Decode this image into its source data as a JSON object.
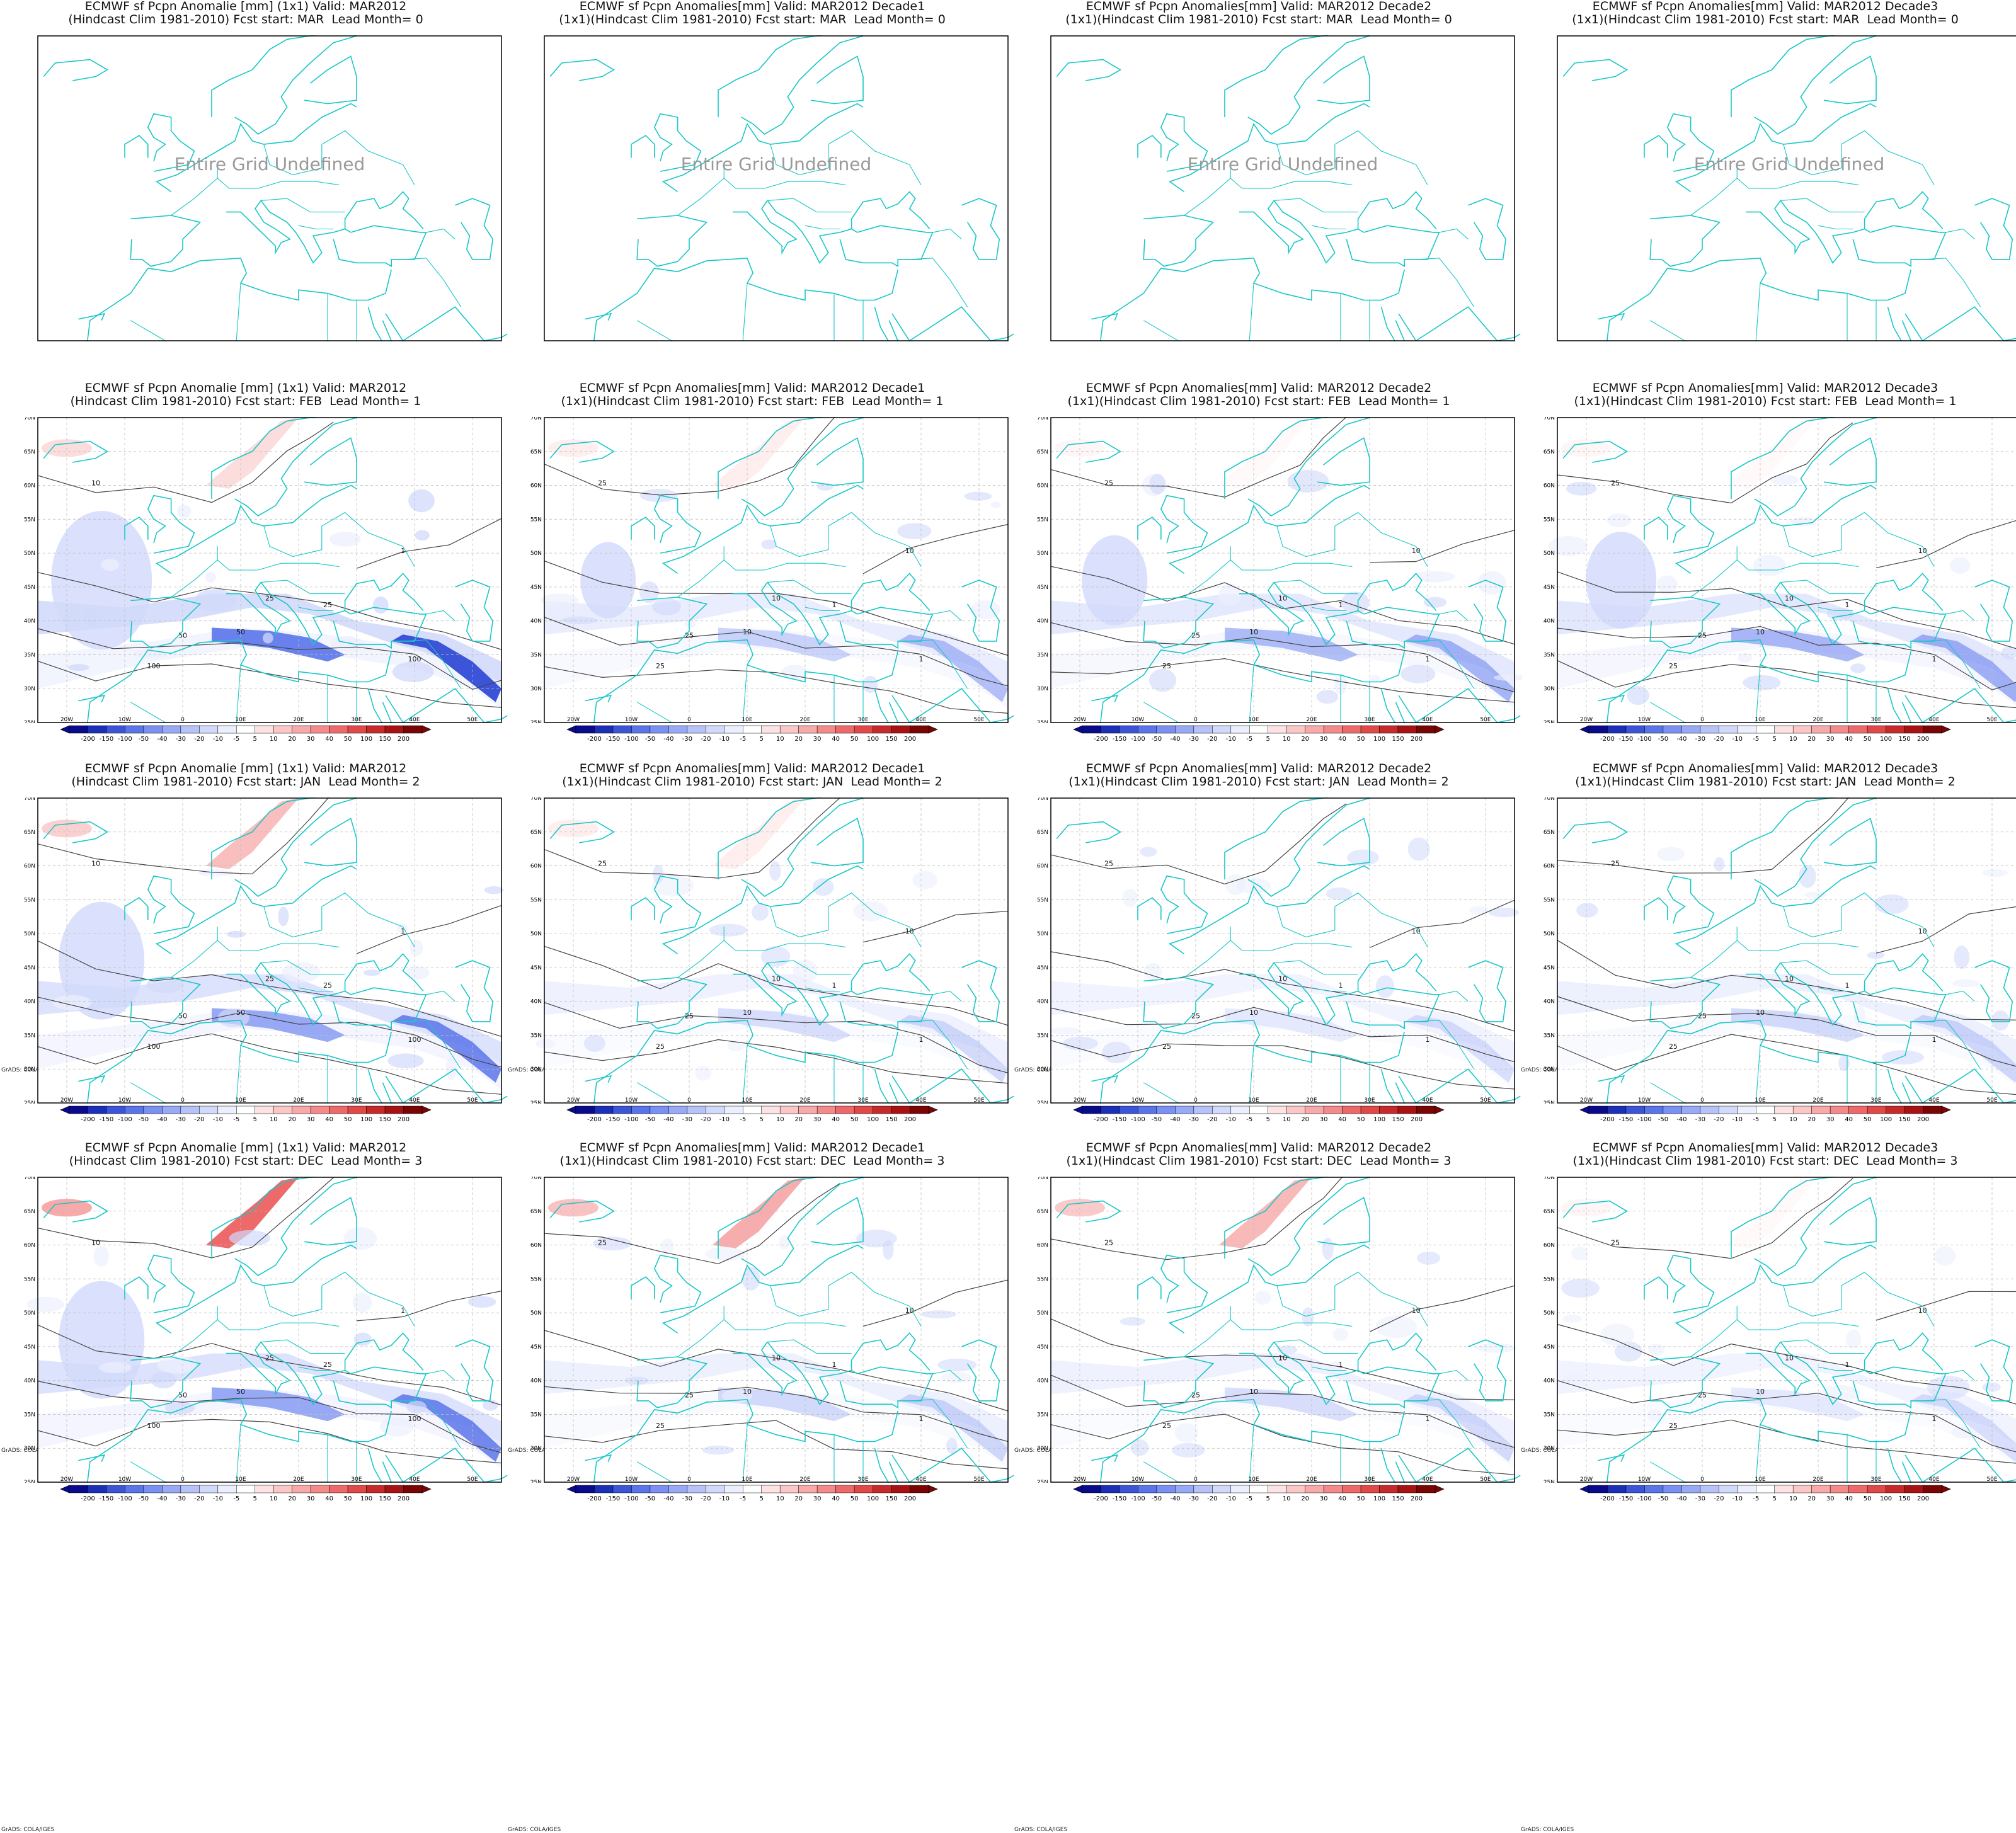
{
  "colors": {
    "coast": "#19c7c7",
    "contour": "#444444",
    "frame": "#000000",
    "undef_text": "#9a9a9a"
  },
  "colorbar": {
    "levels": [
      "-200",
      "-150",
      "-100",
      "-50",
      "-40",
      "-30",
      "-20",
      "-10",
      "-5",
      "5",
      "10",
      "20",
      "30",
      "40",
      "50",
      "100",
      "150",
      "200"
    ],
    "colors": [
      "#0a0a8c",
      "#1c2fb8",
      "#3c55d8",
      "#5a74ea",
      "#7a90f2",
      "#98aaf6",
      "#b6c2f8",
      "#d2dafb",
      "#eceffd",
      "#ffffff",
      "#fde3e3",
      "#fbc7c7",
      "#f8a9a9",
      "#f48a8a",
      "#ee6a6a",
      "#e14848",
      "#c72a2a",
      "#a81212",
      "#7a0505"
    ],
    "credit": "GrADS: COLA/IGES"
  },
  "map": {
    "lon_labels": [
      "20W",
      "10W",
      "0",
      "10E",
      "20E",
      "30E",
      "40E",
      "50E"
    ],
    "lat_labels": [
      "70N",
      "65N",
      "60N",
      "55N",
      "50N",
      "45N",
      "40N",
      "35N",
      "30N",
      "25N"
    ]
  },
  "panels": [
    {
      "title1": "ECMWF sf Pcpn Anomalie [mm] (1x1) Valid: MAR2012",
      "title2": "(Hindcast Clim 1981-2010) Fcst start: MAR  Lead Month= 0",
      "undefined": true,
      "undef_label": "Entire Grid Undefined"
    },
    {
      "title1": "ECMWF sf Pcpn Anomalies[mm] Valid: MAR2012 Decade1",
      "title2": "(1x1)(Hindcast Clim 1981-2010) Fcst start: MAR  Lead Month= 0",
      "undefined": true,
      "undef_label": "Entire Grid Undefined"
    },
    {
      "title1": "ECMWF sf Pcpn Anomalies[mm] Valid: MAR2012 Decade2",
      "title2": "(1x1)(Hindcast Clim 1981-2010) Fcst start: MAR  Lead Month= 0",
      "undefined": true,
      "undef_label": "Entire Grid Undefined"
    },
    {
      "title1": "ECMWF sf Pcpn Anomalies[mm] Valid: MAR2012 Decade3",
      "title2": "(1x1)(Hindcast Clim 1981-2010) Fcst start: MAR  Lead Month= 0",
      "undefined": true,
      "undef_label": "Entire Grid Undefined"
    },
    {
      "title1": "ECMWF sf Pcpn Anomalie [mm] (1x1) Valid: MAR2012",
      "title2": "(Hindcast Clim 1981-2010) Fcst start: FEB  Lead Month= 1",
      "undefined": false,
      "intensity": 1.0,
      "red": 0.4,
      "contour_labels": [
        "100",
        "50",
        "25",
        "10",
        "1"
      ]
    },
    {
      "title1": "ECMWF sf Pcpn Anomalies[mm] Valid: MAR2012 Decade1",
      "title2": "(1x1)(Hindcast Clim 1981-2010) Fcst start: FEB  Lead Month= 1",
      "undefined": false,
      "intensity": 0.55,
      "red": 0.2,
      "contour_labels": [
        "25",
        "10",
        "1"
      ]
    },
    {
      "title1": "ECMWF sf Pcpn Anomalies[mm] Valid: MAR2012 Decade2",
      "title2": "(1x1)(Hindcast Clim 1981-2010) Fcst start: FEB  Lead Month= 1",
      "undefined": false,
      "intensity": 0.65,
      "red": 0.1,
      "contour_labels": [
        "25",
        "10",
        "1"
      ]
    },
    {
      "title1": "ECMWF sf Pcpn Anomalies[mm] Valid: MAR2012 Decade3",
      "title2": "(1x1)(Hindcast Clim 1981-2010) Fcst start: FEB  Lead Month= 1",
      "undefined": false,
      "intensity": 0.7,
      "red": 0.1,
      "contour_labels": [
        "25",
        "10",
        "1"
      ]
    },
    {
      "title1": "ECMWF sf Pcpn Anomalie [mm] (1x1) Valid: MAR2012",
      "title2": "(Hindcast Clim 1981-2010) Fcst start: JAN  Lead Month= 2",
      "undefined": false,
      "intensity": 0.85,
      "red": 0.55,
      "contour_labels": [
        "100",
        "50",
        "25",
        "10",
        "1"
      ]
    },
    {
      "title1": "ECMWF sf Pcpn Anomalies[mm] Valid: MAR2012 Decade1",
      "title2": "(1x1)(Hindcast Clim 1981-2010) Fcst start: JAN  Lead Month= 2",
      "undefined": false,
      "intensity": 0.4,
      "red": 0.2,
      "contour_labels": [
        "25",
        "10",
        "1"
      ]
    },
    {
      "title1": "ECMWF sf Pcpn Anomalies[mm] Valid: MAR2012 Decade2",
      "title2": "(1x1)(Hindcast Clim 1981-2010) Fcst start: JAN  Lead Month= 2",
      "undefined": false,
      "intensity": 0.35,
      "red": 0.05,
      "contour_labels": [
        "25",
        "10",
        "1"
      ]
    },
    {
      "title1": "ECMWF sf Pcpn Anomalies[mm] Valid: MAR2012 Decade3",
      "title2": "(1x1)(Hindcast Clim 1981-2010) Fcst start: JAN  Lead Month= 2",
      "undefined": false,
      "intensity": 0.45,
      "red": 0.05,
      "contour_labels": [
        "25",
        "10",
        "1"
      ]
    },
    {
      "title1": "ECMWF sf Pcpn Anomalie [mm] (1x1) Valid: MAR2012",
      "title2": "(Hindcast Clim 1981-2010) Fcst start: DEC  Lead Month= 3",
      "undefined": false,
      "intensity": 0.85,
      "red": 1.0,
      "contour_labels": [
        "100",
        "50",
        "25",
        "10",
        "1"
      ]
    },
    {
      "title1": "ECMWF sf Pcpn Anomalies[mm] Valid: MAR2012 Decade1",
      "title2": "(1x1)(Hindcast Clim 1981-2010) Fcst start: DEC  Lead Month= 3",
      "undefined": false,
      "intensity": 0.45,
      "red": 0.7,
      "contour_labels": [
        "25",
        "10",
        "1"
      ]
    },
    {
      "title1": "ECMWF sf Pcpn Anomalies[mm] Valid: MAR2012 Decade2",
      "title2": "(1x1)(Hindcast Clim 1981-2010) Fcst start: DEC  Lead Month= 3",
      "undefined": false,
      "intensity": 0.4,
      "red": 0.6,
      "contour_labels": [
        "25",
        "10",
        "1"
      ]
    },
    {
      "title1": "ECMWF sf Pcpn Anomalies[mm] Valid: MAR2012 Decade3",
      "title2": "(1x1)(Hindcast Clim 1981-2010) Fcst start: DEC  Lead Month= 3",
      "undefined": false,
      "intensity": 0.35,
      "red": 0.1,
      "contour_labels": [
        "25",
        "10",
        "1"
      ]
    }
  ]
}
